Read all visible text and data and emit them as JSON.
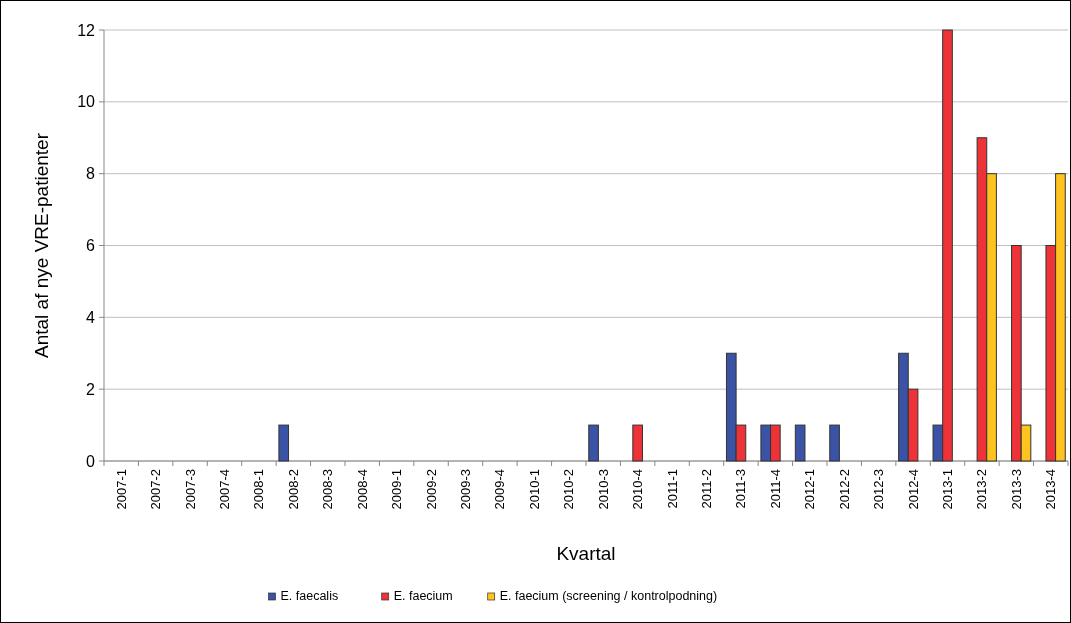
{
  "chart_data": {
    "type": "bar",
    "xlabel": "Kvartal",
    "ylabel": "Antal af nye VRE-patienter",
    "categories": [
      "2007-1",
      "2007-2",
      "2007-3",
      "2007-4",
      "2008-1",
      "2008-2",
      "2008-3",
      "2008-4",
      "2009-1",
      "2009-2",
      "2009-3",
      "2009-4",
      "2010-1",
      "2010-2",
      "2010-3",
      "2010-4",
      "2011-1",
      "2011-2",
      "2011-3",
      "2011-4",
      "2012-1",
      "2012-2",
      "2012-3",
      "2012-4",
      "2013-1",
      "2013-2",
      "2013-3",
      "2013-4"
    ],
    "series": [
      {
        "name": "E. faecalis",
        "color": "#3a53a4",
        "values": [
          0,
          0,
          0,
          0,
          0,
          1,
          0,
          0,
          0,
          0,
          0,
          0,
          0,
          0,
          1,
          0,
          0,
          0,
          3,
          1,
          1,
          1,
          0,
          3,
          1,
          0,
          0,
          0
        ]
      },
      {
        "name": "E. faecium",
        "color": "#ee3338",
        "values": [
          0,
          0,
          0,
          0,
          0,
          0,
          0,
          0,
          0,
          0,
          0,
          0,
          0,
          0,
          0,
          1,
          0,
          0,
          1,
          1,
          0,
          0,
          0,
          2,
          12,
          9,
          6,
          6
        ]
      },
      {
        "name": "E. faecium (screening / kontrolpodning)",
        "color": "#ffc31f",
        "values": [
          0,
          0,
          0,
          0,
          0,
          0,
          0,
          0,
          0,
          0,
          0,
          0,
          0,
          0,
          0,
          0,
          0,
          0,
          0,
          0,
          0,
          0,
          0,
          0,
          0,
          8,
          1,
          8
        ]
      }
    ],
    "ylim": [
      0,
      12
    ],
    "yticks": [
      0,
      2,
      4,
      6,
      8,
      10,
      12
    ],
    "grid": "y",
    "legend": "bottom"
  }
}
